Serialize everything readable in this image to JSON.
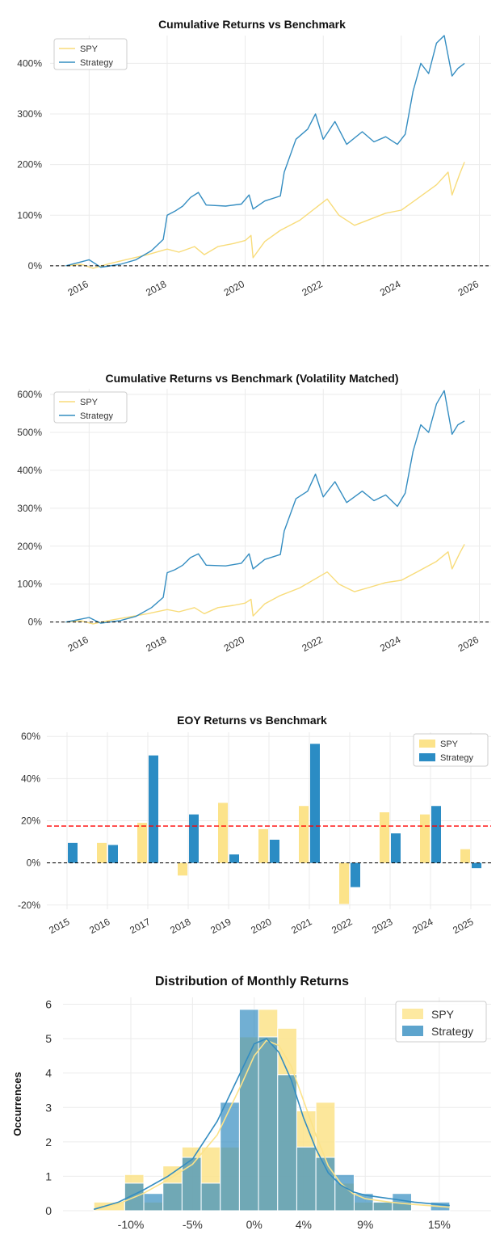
{
  "colors": {
    "spy": "#fce38a",
    "spy_line": "#f8dc7a",
    "strategy": "#348dc1",
    "strategy_bar": "#2b8cc4",
    "grid": "#ebebeb",
    "zero": "#000000",
    "mean": "#ff0000"
  },
  "chart_data": [
    {
      "type": "line",
      "title": "Cumulative Returns vs Benchmark",
      "x_ticks": [
        "2016",
        "2018",
        "2020",
        "2022",
        "2024",
        "2026"
      ],
      "y_ticks": [
        "0%",
        "100%",
        "200%",
        "300%",
        "400%"
      ],
      "ylim": [
        -5,
        455
      ],
      "xlim": [
        2015.0,
        2026.3
      ],
      "grid": true,
      "legend": "top-left",
      "series": [
        {
          "name": "SPY",
          "color": "spy_line",
          "points": [
            [
              2015.4,
              0
            ],
            [
              2015.8,
              3
            ],
            [
              2016.1,
              -5
            ],
            [
              2016.5,
              4
            ],
            [
              2017.0,
              13
            ],
            [
              2017.5,
              22
            ],
            [
              2018.0,
              33
            ],
            [
              2018.3,
              27
            ],
            [
              2018.7,
              38
            ],
            [
              2018.95,
              22
            ],
            [
              2019.3,
              38
            ],
            [
              2019.7,
              44
            ],
            [
              2020.0,
              50
            ],
            [
              2020.15,
              60
            ],
            [
              2020.2,
              16
            ],
            [
              2020.5,
              48
            ],
            [
              2020.9,
              70
            ],
            [
              2021.4,
              90
            ],
            [
              2021.9,
              120
            ],
            [
              2022.1,
              132
            ],
            [
              2022.4,
              100
            ],
            [
              2022.8,
              80
            ],
            [
              2023.2,
              92
            ],
            [
              2023.6,
              104
            ],
            [
              2024.0,
              110
            ],
            [
              2024.4,
              132
            ],
            [
              2024.9,
              160
            ],
            [
              2025.2,
              185
            ],
            [
              2025.3,
              140
            ],
            [
              2025.5,
              182
            ],
            [
              2025.62,
              205
            ]
          ]
        },
        {
          "name": "Strategy",
          "color": "strategy",
          "points": [
            [
              2015.4,
              0
            ],
            [
              2015.8,
              8
            ],
            [
              2016.0,
              12
            ],
            [
              2016.3,
              -3
            ],
            [
              2016.8,
              3
            ],
            [
              2017.2,
              12
            ],
            [
              2017.6,
              30
            ],
            [
              2017.9,
              52
            ],
            [
              2018.0,
              100
            ],
            [
              2018.2,
              108
            ],
            [
              2018.4,
              118
            ],
            [
              2018.6,
              135
            ],
            [
              2018.8,
              145
            ],
            [
              2019.0,
              120
            ],
            [
              2019.5,
              118
            ],
            [
              2019.9,
              122
            ],
            [
              2020.1,
              140
            ],
            [
              2020.2,
              112
            ],
            [
              2020.5,
              128
            ],
            [
              2020.9,
              138
            ],
            [
              2021.0,
              185
            ],
            [
              2021.3,
              250
            ],
            [
              2021.6,
              270
            ],
            [
              2021.8,
              300
            ],
            [
              2022.0,
              250
            ],
            [
              2022.3,
              285
            ],
            [
              2022.6,
              240
            ],
            [
              2023.0,
              265
            ],
            [
              2023.3,
              245
            ],
            [
              2023.6,
              255
            ],
            [
              2023.9,
              240
            ],
            [
              2024.1,
              260
            ],
            [
              2024.3,
              345
            ],
            [
              2024.5,
              400
            ],
            [
              2024.7,
              380
            ],
            [
              2024.9,
              440
            ],
            [
              2025.1,
              455
            ],
            [
              2025.3,
              375
            ],
            [
              2025.45,
              390
            ],
            [
              2025.62,
              400
            ]
          ]
        }
      ]
    },
    {
      "type": "line",
      "title": "Cumulative Returns vs Benchmark (Volatility Matched)",
      "x_ticks": [
        "2016",
        "2018",
        "2020",
        "2022",
        "2024",
        "2026"
      ],
      "y_ticks": [
        "0%",
        "100%",
        "200%",
        "300%",
        "400%",
        "500%",
        "600%"
      ],
      "ylim": [
        -5,
        615
      ],
      "xlim": [
        2015.0,
        2026.3
      ],
      "grid": true,
      "legend": "top-left",
      "series": [
        {
          "name": "SPY",
          "color": "spy_line",
          "points": [
            [
              2015.4,
              0
            ],
            [
              2015.8,
              3
            ],
            [
              2016.1,
              -5
            ],
            [
              2016.5,
              4
            ],
            [
              2017.0,
              13
            ],
            [
              2017.5,
              22
            ],
            [
              2018.0,
              33
            ],
            [
              2018.3,
              27
            ],
            [
              2018.7,
              38
            ],
            [
              2018.95,
              22
            ],
            [
              2019.3,
              38
            ],
            [
              2019.7,
              44
            ],
            [
              2020.0,
              50
            ],
            [
              2020.15,
              60
            ],
            [
              2020.2,
              16
            ],
            [
              2020.5,
              48
            ],
            [
              2020.9,
              70
            ],
            [
              2021.4,
              90
            ],
            [
              2021.9,
              120
            ],
            [
              2022.1,
              132
            ],
            [
              2022.4,
              100
            ],
            [
              2022.8,
              80
            ],
            [
              2023.2,
              92
            ],
            [
              2023.6,
              104
            ],
            [
              2024.0,
              110
            ],
            [
              2024.4,
              132
            ],
            [
              2024.9,
              160
            ],
            [
              2025.2,
              185
            ],
            [
              2025.3,
              140
            ],
            [
              2025.5,
              182
            ],
            [
              2025.62,
              205
            ]
          ]
        },
        {
          "name": "Strategy",
          "color": "strategy",
          "points": [
            [
              2015.4,
              0
            ],
            [
              2015.8,
              8
            ],
            [
              2016.0,
              12
            ],
            [
              2016.3,
              -3
            ],
            [
              2016.8,
              4
            ],
            [
              2017.2,
              15
            ],
            [
              2017.6,
              38
            ],
            [
              2017.9,
              65
            ],
            [
              2018.0,
              130
            ],
            [
              2018.2,
              138
            ],
            [
              2018.4,
              150
            ],
            [
              2018.6,
              170
            ],
            [
              2018.8,
              180
            ],
            [
              2019.0,
              150
            ],
            [
              2019.5,
              148
            ],
            [
              2019.9,
              155
            ],
            [
              2020.1,
              180
            ],
            [
              2020.2,
              140
            ],
            [
              2020.5,
              165
            ],
            [
              2020.9,
              178
            ],
            [
              2021.0,
              240
            ],
            [
              2021.3,
              325
            ],
            [
              2021.6,
              345
            ],
            [
              2021.8,
              390
            ],
            [
              2022.0,
              330
            ],
            [
              2022.3,
              370
            ],
            [
              2022.6,
              315
            ],
            [
              2023.0,
              345
            ],
            [
              2023.3,
              320
            ],
            [
              2023.6,
              335
            ],
            [
              2023.9,
              305
            ],
            [
              2024.1,
              340
            ],
            [
              2024.3,
              450
            ],
            [
              2024.5,
              520
            ],
            [
              2024.7,
              500
            ],
            [
              2024.9,
              575
            ],
            [
              2025.1,
              610
            ],
            [
              2025.3,
              495
            ],
            [
              2025.45,
              520
            ],
            [
              2025.62,
              530
            ]
          ]
        }
      ]
    },
    {
      "type": "bar",
      "title": "EOY Returns  vs Benchmark",
      "categories": [
        "2015",
        "2016",
        "2017",
        "2018",
        "2019",
        "2020",
        "2021",
        "2022",
        "2023",
        "2024",
        "2025"
      ],
      "y_ticks": [
        "-20%",
        "0%",
        "20%",
        "40%",
        "60%"
      ],
      "ylim": [
        -22,
        62
      ],
      "grid": true,
      "legend": "top-right",
      "mean_line": 17.5,
      "series": [
        {
          "name": "SPY",
          "color": "spy",
          "values": [
            null,
            9.5,
            19,
            -6,
            28.5,
            16,
            27,
            -19.5,
            24,
            23,
            6.5
          ]
        },
        {
          "name": "Strategy",
          "color": "strategy_bar",
          "values": [
            9.5,
            8.5,
            51,
            23,
            4,
            11,
            56.5,
            -11.5,
            14,
            27,
            -2.5
          ]
        }
      ]
    },
    {
      "type": "histogram",
      "title": "Distribution of Monthly Returns",
      "ylabel": "Occurrences",
      "x_ticks": [
        "-10%",
        "-5%",
        "0%",
        "4%",
        "9%",
        "15%"
      ],
      "x_tick_values": [
        -10,
        -5,
        0,
        4,
        9,
        15
      ],
      "y_ticks": [
        "0",
        "1",
        "2",
        "3",
        "4",
        "5",
        "6"
      ],
      "xlim": [
        -15.5,
        19.2
      ],
      "ylim": [
        0,
        6.2
      ],
      "grid": true,
      "legend": "top-right",
      "series": [
        {
          "name": "SPY",
          "color": "spy",
          "bins": [
            [
              -13.0,
              -10.5,
              0.25
            ],
            [
              -10.5,
              -8.95,
              1.05
            ],
            [
              -8.95,
              -7.4,
              0.25
            ],
            [
              -7.4,
              -5.85,
              1.3
            ],
            [
              -5.85,
              -4.3,
              1.85
            ],
            [
              -4.3,
              -2.75,
              1.85
            ],
            [
              -2.75,
              -1.2,
              1.85
            ],
            [
              -1.2,
              0.35,
              5.05
            ],
            [
              0.35,
              1.9,
              5.85
            ],
            [
              1.9,
              3.45,
              5.3
            ],
            [
              3.45,
              5.0,
              2.9
            ],
            [
              5.0,
              6.55,
              3.15
            ],
            [
              6.55,
              8.1,
              0.8
            ],
            [
              8.1,
              9.65,
              0.25
            ],
            [
              9.65,
              11.2,
              0.25
            ],
            [
              11.2,
              12.75,
              0.25
            ],
            [
              12.75,
              14.3,
              0
            ],
            [
              14.3,
              15.85,
              0
            ]
          ],
          "kde": [
            [
              -13,
              0.04
            ],
            [
              -11,
              0.2
            ],
            [
              -9,
              0.5
            ],
            [
              -7,
              0.9
            ],
            [
              -5,
              1.35
            ],
            [
              -3,
              2.2
            ],
            [
              -1,
              3.7
            ],
            [
              0,
              4.5
            ],
            [
              1,
              4.95
            ],
            [
              2,
              4.8
            ],
            [
              3,
              4.2
            ],
            [
              4,
              3.2
            ],
            [
              5,
              2.2
            ],
            [
              6,
              1.3
            ],
            [
              7,
              0.8
            ],
            [
              8,
              0.5
            ],
            [
              9,
              0.35
            ],
            [
              11,
              0.25
            ],
            [
              13,
              0.18
            ],
            [
              15.85,
              0.1
            ]
          ]
        },
        {
          "name": "Strategy",
          "color": "strategy",
          "bins": [
            [
              -10.5,
              -8.95,
              0.8
            ],
            [
              -8.95,
              -7.4,
              0.5
            ],
            [
              -7.4,
              -5.85,
              0.8
            ],
            [
              -5.85,
              -4.3,
              1.55
            ],
            [
              -4.3,
              -2.75,
              0.8
            ],
            [
              -2.75,
              -1.2,
              3.15
            ],
            [
              -1.2,
              0.35,
              5.85
            ],
            [
              0.35,
              1.9,
              5.05
            ],
            [
              1.9,
              3.45,
              3.95
            ],
            [
              3.45,
              5.0,
              1.85
            ],
            [
              5.0,
              6.55,
              1.55
            ],
            [
              6.55,
              8.1,
              1.05
            ],
            [
              8.1,
              9.65,
              0.5
            ],
            [
              9.65,
              11.2,
              0.25
            ],
            [
              11.2,
              12.75,
              0.5
            ],
            [
              12.75,
              14.3,
              0
            ],
            [
              14.3,
              15.85,
              0.25
            ]
          ],
          "kde": [
            [
              -13,
              0.04
            ],
            [
              -11,
              0.25
            ],
            [
              -9,
              0.6
            ],
            [
              -7,
              1.0
            ],
            [
              -5,
              1.5
            ],
            [
              -3,
              2.6
            ],
            [
              -1,
              4.1
            ],
            [
              0,
              4.85
            ],
            [
              1,
              5.0
            ],
            [
              2,
              4.6
            ],
            [
              3,
              3.8
            ],
            [
              4,
              2.7
            ],
            [
              5,
              1.8
            ],
            [
              6,
              1.1
            ],
            [
              7,
              0.75
            ],
            [
              8,
              0.55
            ],
            [
              9,
              0.45
            ],
            [
              11,
              0.35
            ],
            [
              13,
              0.25
            ],
            [
              15.85,
              0.15
            ]
          ]
        }
      ]
    }
  ]
}
